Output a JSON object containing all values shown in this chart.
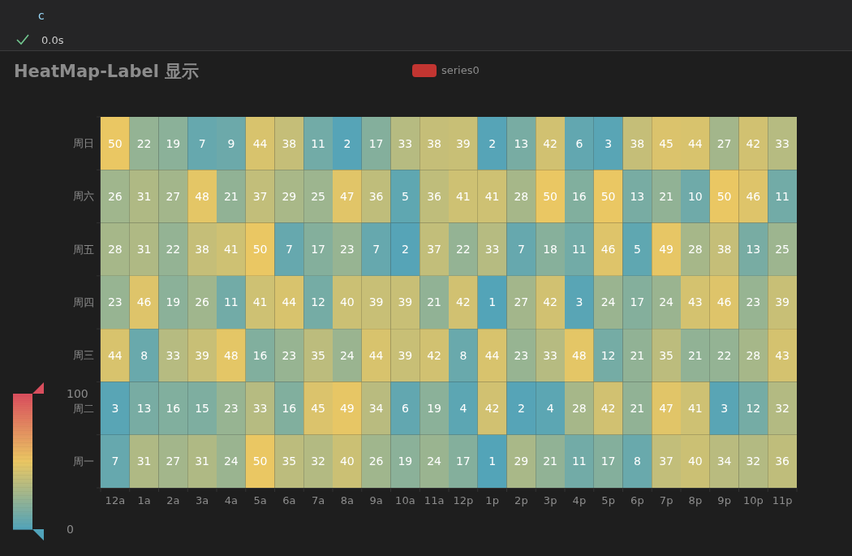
{
  "chart_data": {
    "type": "heatmap",
    "title": "HeatMap-Label 显示",
    "annotations": [
      "c",
      "0.0s"
    ],
    "categories": [
      "12a",
      "1a",
      "2a",
      "3a",
      "4a",
      "5a",
      "6a",
      "7a",
      "8a",
      "9a",
      "10a",
      "11a",
      "12p",
      "1p",
      "2p",
      "3p",
      "4p",
      "5p",
      "6p",
      "7p",
      "8p",
      "9p",
      "10p",
      "11p"
    ],
    "y_categories": [
      "周日",
      "周六",
      "周五",
      "周四",
      "周三",
      "周二",
      "周一"
    ],
    "legend_title": "series0",
    "data_labels": true,
    "clim": [
      0,
      100
    ],
    "cticks": [
      0,
      100
    ],
    "cells": [
      [
        50,
        22,
        19,
        7,
        9,
        44,
        38,
        11,
        2,
        17,
        33,
        38,
        39,
        2,
        13,
        42,
        6,
        3,
        38,
        45,
        44,
        27,
        42,
        33
      ],
      [
        26,
        31,
        27,
        48,
        21,
        37,
        29,
        25,
        47,
        36,
        5,
        36,
        41,
        41,
        28,
        50,
        16,
        50,
        13,
        21,
        10,
        50,
        46,
        11
      ],
      [
        28,
        31,
        22,
        38,
        41,
        50,
        7,
        17,
        23,
        7,
        2,
        37,
        22,
        33,
        7,
        18,
        11,
        46,
        5,
        49,
        28,
        38,
        13,
        25
      ],
      [
        23,
        46,
        19,
        26,
        11,
        41,
        44,
        12,
        40,
        39,
        39,
        21,
        42,
        1,
        27,
        42,
        3,
        24,
        17,
        24,
        43,
        46,
        23,
        39
      ],
      [
        44,
        8,
        33,
        39,
        48,
        16,
        23,
        35,
        24,
        44,
        39,
        42,
        8,
        44,
        23,
        33,
        48,
        12,
        21,
        35,
        21,
        22,
        28,
        43
      ],
      [
        3,
        13,
        16,
        15,
        23,
        33,
        16,
        45,
        49,
        34,
        6,
        19,
        4,
        42,
        2,
        4,
        28,
        42,
        21,
        47,
        41,
        3,
        12,
        32
      ],
      [
        7,
        31,
        27,
        31,
        24,
        50,
        35,
        32,
        40,
        26,
        19,
        24,
        17,
        1,
        29,
        21,
        11,
        17,
        8,
        37,
        40,
        34,
        32,
        36
      ]
    ]
  }
}
